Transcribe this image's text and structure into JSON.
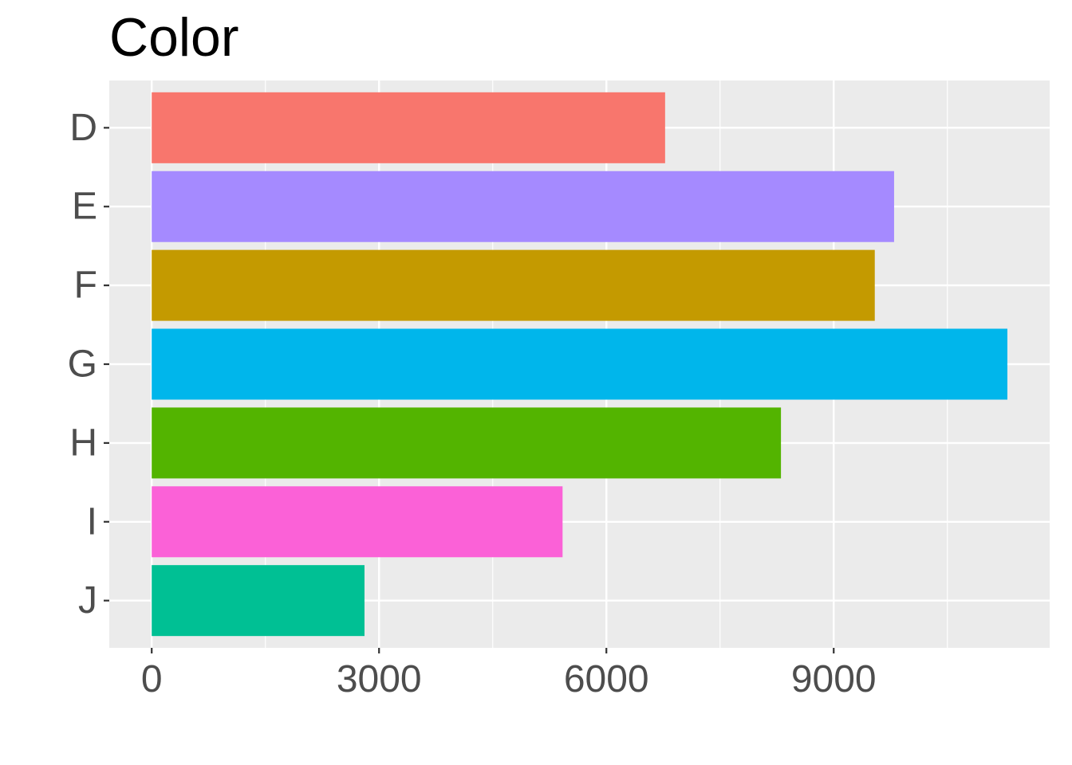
{
  "chart_data": {
    "type": "bar",
    "orientation": "horizontal",
    "title": "Color",
    "xlabel": "",
    "ylabel": "",
    "categories": [
      "D",
      "E",
      "F",
      "G",
      "H",
      "I",
      "J"
    ],
    "values": [
      6775,
      9797,
      9542,
      11292,
      8304,
      5422,
      2808
    ],
    "colors": [
      "#F8766D",
      "#A58AFF",
      "#C49A00",
      "#00B6EB",
      "#53B400",
      "#FB61D7",
      "#00C094"
    ],
    "xlim": [
      -560,
      11850
    ],
    "x_ticks": [
      "0",
      "3000",
      "6000",
      "9000"
    ],
    "x_tick_values": [
      0,
      3000,
      6000,
      9000
    ],
    "grid": true,
    "legend": "none",
    "panel_background": "#EBEBEB",
    "grid_color": "#FFFFFF"
  }
}
